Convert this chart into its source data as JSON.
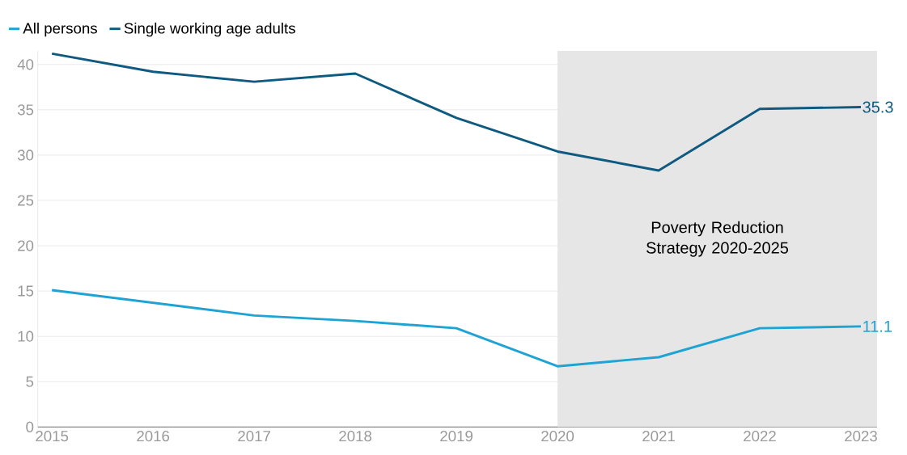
{
  "chart_data": {
    "type": "line",
    "x": [
      2015,
      2016,
      2017,
      2018,
      2019,
      2020,
      2021,
      2022,
      2023
    ],
    "series": [
      {
        "name": "All persons",
        "color": "#1fa3d4",
        "values": [
          15.1,
          13.7,
          12.3,
          11.7,
          10.9,
          6.7,
          7.7,
          10.9,
          11.1
        ],
        "value_labels": [
          null,
          null,
          null,
          null,
          null,
          null,
          null,
          null,
          "11.1"
        ]
      },
      {
        "name": "Single working age adults",
        "color": "#0e5a80",
        "values": [
          41.2,
          39.2,
          38.1,
          39.0,
          34.1,
          30.4,
          28.3,
          35.1,
          35.3
        ],
        "value_labels": [
          null,
          null,
          null,
          null,
          null,
          null,
          null,
          null,
          "35.3"
        ]
      }
    ],
    "xlim": [
      2014.86,
      2023.16
    ],
    "ylim": [
      0,
      41.5
    ],
    "xticks": [
      2015,
      2016,
      2017,
      2018,
      2019,
      2020,
      2021,
      2022,
      2023
    ],
    "yticks": [
      0,
      5,
      10,
      15,
      20,
      25,
      30,
      35,
      40
    ],
    "bands": [
      {
        "axis": "x",
        "from": 2020,
        "to": 2023.16,
        "label": "Poverty Reduction Strategy 2020-2025",
        "color": "#e6e6e6"
      }
    ],
    "grid": "y",
    "legend": "top left",
    "marker": "none",
    "line_style": "solid"
  }
}
